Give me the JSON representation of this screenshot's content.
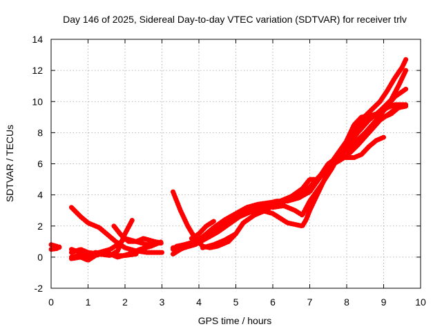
{
  "chart_data": {
    "type": "scatter",
    "title": "Day 146 of 2025, Sidereal Day-to-day VTEC variation (SDTVAR) for receiver trlv",
    "xlabel": "GPS time / hours",
    "ylabel": "SDTVAR / TECUs",
    "xlim": [
      0,
      10
    ],
    "ylim": [
      -2,
      14
    ],
    "xticks": [
      0,
      1,
      2,
      3,
      4,
      5,
      6,
      7,
      8,
      9,
      10
    ],
    "yticks": [
      -2,
      0,
      2,
      4,
      6,
      8,
      10,
      12,
      14
    ],
    "grid": true,
    "marker": "plus",
    "color": "#ff0000",
    "series": [
      {
        "name": "s1",
        "points": [
          [
            0.0,
            0.8
          ],
          [
            0.15,
            0.7
          ],
          [
            0.25,
            0.6
          ]
        ]
      },
      {
        "name": "s2",
        "points": [
          [
            0.0,
            0.5
          ],
          [
            0.15,
            0.55
          ],
          [
            0.25,
            0.7
          ]
        ]
      },
      {
        "name": "s3",
        "points": [
          [
            0.55,
            3.2
          ],
          [
            0.8,
            2.6
          ],
          [
            1.0,
            2.2
          ],
          [
            1.3,
            1.9
          ],
          [
            1.5,
            1.5
          ],
          [
            1.75,
            1.0
          ],
          [
            2.0,
            0.6
          ],
          [
            2.3,
            0.4
          ],
          [
            2.6,
            0.3
          ],
          [
            3.0,
            0.3
          ]
        ]
      },
      {
        "name": "s4",
        "points": [
          [
            0.55,
            0.5
          ],
          [
            0.8,
            0.3
          ],
          [
            1.0,
            0.2
          ],
          [
            1.3,
            0.3
          ],
          [
            1.6,
            0.5
          ],
          [
            1.8,
            0.8
          ],
          [
            2.0,
            1.2
          ],
          [
            2.3,
            1.0
          ],
          [
            2.6,
            0.8
          ],
          [
            2.8,
            0.9
          ],
          [
            3.0,
            0.9
          ]
        ]
      },
      {
        "name": "s5",
        "points": [
          [
            0.55,
            -0.1
          ],
          [
            0.8,
            0.0
          ],
          [
            1.0,
            -0.2
          ],
          [
            1.2,
            0.1
          ],
          [
            1.5,
            0.3
          ],
          [
            1.8,
            0.0
          ],
          [
            2.1,
            0.2
          ],
          [
            2.4,
            0.5
          ],
          [
            2.7,
            0.7
          ],
          [
            3.0,
            1.0
          ]
        ]
      },
      {
        "name": "s6",
        "points": [
          [
            0.55,
            0.3
          ],
          [
            0.8,
            0.5
          ],
          [
            1.0,
            0.3
          ],
          [
            1.3,
            0.2
          ],
          [
            1.6,
            0.1
          ],
          [
            1.8,
            0.4
          ],
          [
            2.0,
            1.5
          ],
          [
            2.2,
            2.4
          ]
        ]
      },
      {
        "name": "s7",
        "points": [
          [
            1.7,
            2.0
          ],
          [
            1.9,
            1.4
          ],
          [
            2.1,
            1.0
          ],
          [
            2.3,
            1.0
          ],
          [
            2.5,
            1.2
          ],
          [
            2.8,
            1.0
          ],
          [
            3.0,
            0.9
          ]
        ]
      },
      {
        "name": "s8",
        "points": [
          [
            0.55,
            0.0
          ],
          [
            0.75,
            0.1
          ],
          [
            1.0,
            0.0
          ],
          [
            1.2,
            0.3
          ],
          [
            1.5,
            0.2
          ],
          [
            1.8,
            0.1
          ],
          [
            2.0,
            0.1
          ],
          [
            2.3,
            0.2
          ]
        ]
      },
      {
        "name": "s9",
        "points": [
          [
            3.3,
            4.2
          ],
          [
            3.5,
            3.0
          ],
          [
            3.7,
            2.0
          ],
          [
            3.9,
            1.2
          ],
          [
            4.1,
            0.7
          ],
          [
            4.3,
            0.6
          ],
          [
            4.5,
            0.7
          ],
          [
            4.8,
            1.0
          ],
          [
            5.0,
            1.5
          ],
          [
            5.2,
            2.2
          ],
          [
            5.5,
            2.7
          ],
          [
            5.8,
            3.0
          ],
          [
            6.0,
            3.3
          ],
          [
            6.3,
            3.6
          ],
          [
            6.5,
            3.9
          ],
          [
            6.8,
            4.2
          ],
          [
            7.0,
            4.5
          ],
          [
            7.3,
            5.3
          ],
          [
            7.5,
            6.0
          ],
          [
            7.8,
            6.5
          ],
          [
            8.0,
            7.1
          ],
          [
            8.3,
            8.0
          ],
          [
            8.6,
            8.8
          ],
          [
            8.9,
            9.4
          ],
          [
            9.2,
            10.1
          ],
          [
            9.4,
            11.0
          ],
          [
            9.6,
            12.0
          ]
        ]
      },
      {
        "name": "s10",
        "points": [
          [
            3.3,
            0.6
          ],
          [
            3.5,
            0.7
          ],
          [
            3.8,
            0.9
          ],
          [
            4.0,
            1.0
          ],
          [
            4.2,
            1.4
          ],
          [
            4.5,
            1.9
          ],
          [
            4.8,
            2.4
          ],
          [
            5.0,
            2.7
          ],
          [
            5.3,
            2.9
          ],
          [
            5.6,
            3.1
          ],
          [
            5.9,
            3.4
          ],
          [
            6.2,
            3.5
          ],
          [
            6.5,
            3.7
          ],
          [
            6.8,
            4.0
          ],
          [
            7.0,
            4.3
          ],
          [
            7.2,
            5.0
          ],
          [
            7.5,
            5.8
          ],
          [
            7.8,
            6.2
          ],
          [
            8.0,
            6.5
          ],
          [
            8.3,
            7.2
          ],
          [
            8.6,
            8.0
          ],
          [
            8.9,
            8.8
          ],
          [
            9.2,
            9.3
          ],
          [
            9.4,
            9.7
          ],
          [
            9.6,
            9.7
          ]
        ]
      },
      {
        "name": "s11",
        "points": [
          [
            3.3,
            0.2
          ],
          [
            3.5,
            0.5
          ],
          [
            3.8,
            0.8
          ],
          [
            4.0,
            1.1
          ],
          [
            4.3,
            1.5
          ],
          [
            4.6,
            2.0
          ],
          [
            4.9,
            2.5
          ],
          [
            5.2,
            2.9
          ],
          [
            5.5,
            3.2
          ],
          [
            5.8,
            3.4
          ],
          [
            6.1,
            3.6
          ],
          [
            6.4,
            3.6
          ],
          [
            6.7,
            3.8
          ],
          [
            7.0,
            4.2
          ],
          [
            7.3,
            5.2
          ],
          [
            7.6,
            6.0
          ],
          [
            7.9,
            6.4
          ],
          [
            8.2,
            6.4
          ],
          [
            8.4,
            6.6
          ],
          [
            8.6,
            7.1
          ],
          [
            8.8,
            7.5
          ],
          [
            9.0,
            7.7
          ]
        ]
      },
      {
        "name": "s12",
        "points": [
          [
            3.3,
            0.5
          ],
          [
            3.6,
            0.6
          ],
          [
            3.9,
            0.8
          ],
          [
            4.2,
            1.2
          ],
          [
            4.5,
            1.6
          ],
          [
            4.8,
            2.1
          ],
          [
            5.1,
            2.6
          ],
          [
            5.4,
            2.9
          ],
          [
            5.7,
            3.0
          ],
          [
            6.0,
            2.8
          ],
          [
            6.2,
            2.5
          ],
          [
            6.4,
            2.2
          ],
          [
            6.6,
            2.1
          ],
          [
            6.8,
            2.0
          ],
          [
            6.9,
            2.4
          ],
          [
            7.0,
            3.0
          ],
          [
            7.2,
            4.0
          ],
          [
            7.4,
            5.0
          ],
          [
            7.6,
            6.0
          ],
          [
            7.9,
            6.7
          ],
          [
            8.2,
            7.3
          ],
          [
            8.5,
            8.0
          ],
          [
            8.8,
            8.8
          ],
          [
            9.1,
            9.7
          ],
          [
            9.3,
            10.3
          ],
          [
            9.6,
            10.8
          ]
        ]
      },
      {
        "name": "s13",
        "points": [
          [
            3.4,
            0.7
          ],
          [
            3.6,
            0.8
          ],
          [
            3.9,
            1.0
          ],
          [
            4.1,
            1.3
          ],
          [
            4.4,
            1.9
          ],
          [
            4.7,
            2.4
          ],
          [
            5.0,
            2.8
          ],
          [
            5.3,
            3.2
          ],
          [
            5.6,
            3.4
          ],
          [
            5.9,
            3.5
          ],
          [
            6.2,
            3.6
          ],
          [
            6.5,
            3.9
          ],
          [
            6.8,
            4.4
          ],
          [
            7.0,
            5.0
          ],
          [
            7.2,
            5.0
          ],
          [
            7.5,
            5.8
          ],
          [
            7.8,
            6.8
          ],
          [
            8.1,
            7.8
          ],
          [
            8.3,
            8.6
          ],
          [
            8.6,
            9.3
          ],
          [
            8.9,
            10.0
          ],
          [
            9.1,
            10.7
          ],
          [
            9.3,
            11.5
          ],
          [
            9.5,
            12.2
          ],
          [
            9.6,
            12.7
          ]
        ]
      },
      {
        "name": "s14",
        "points": [
          [
            3.8,
            1.2
          ],
          [
            4.0,
            1.5
          ],
          [
            4.2,
            2.0
          ],
          [
            4.4,
            2.3
          ]
        ]
      },
      {
        "name": "s15",
        "points": [
          [
            4.1,
            0.6
          ],
          [
            4.4,
            0.8
          ],
          [
            4.7,
            1.1
          ],
          [
            5.0,
            1.5
          ]
        ]
      },
      {
        "name": "s16",
        "points": [
          [
            6.0,
            3.2
          ],
          [
            6.3,
            3.3
          ],
          [
            6.6,
            3.0
          ],
          [
            6.8,
            2.7
          ],
          [
            7.0,
            3.6
          ],
          [
            7.3,
            4.6
          ],
          [
            7.6,
            5.7
          ],
          [
            7.9,
            7.0
          ],
          [
            8.2,
            8.0
          ],
          [
            8.5,
            9.0
          ],
          [
            8.8,
            9.2
          ],
          [
            9.1,
            9.6
          ],
          [
            9.3,
            9.8
          ],
          [
            9.6,
            9.8
          ]
        ]
      },
      {
        "name": "s17",
        "points": [
          [
            8.0,
            7.5
          ],
          [
            8.2,
            8.5
          ],
          [
            8.4,
            9.0
          ],
          [
            8.7,
            9.1
          ],
          [
            9.0,
            9.0
          ],
          [
            9.2,
            9.2
          ],
          [
            9.4,
            9.6
          ],
          [
            9.6,
            9.7
          ]
        ]
      }
    ]
  }
}
